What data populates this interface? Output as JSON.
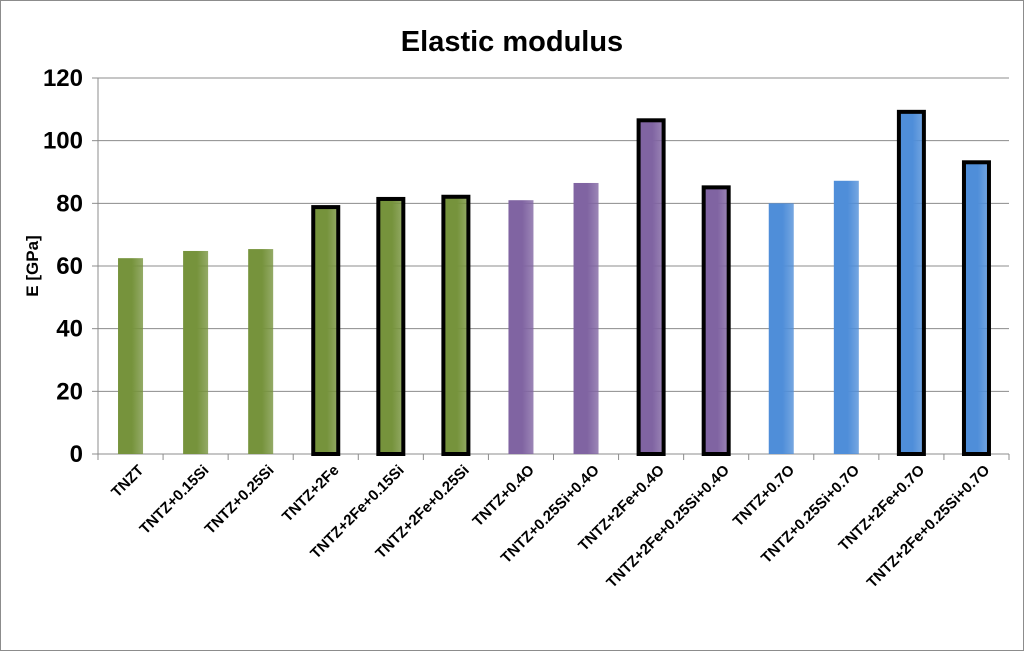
{
  "chart_data": {
    "type": "bar",
    "title": "Elastic modulus",
    "xlabel": "",
    "ylabel": "E [GPa]",
    "ylim": [
      0,
      120
    ],
    "yticks": [
      0,
      20,
      40,
      60,
      80,
      100,
      120
    ],
    "grid": true,
    "legend": "none",
    "categories": [
      "TNZT",
      "TNTZ+0.15Si",
      "TNTZ+0.25Si",
      "TNTZ+2Fe",
      "TNTZ+2Fe+0.15Si",
      "TNTZ+2Fe+0.25Si",
      "TNTZ+0.4O",
      "TNTZ+0.25Si+0.4O",
      "TNTZ+2Fe+0.4O",
      "TNTZ+2Fe+0.25Si+0.4O",
      "TNTZ+0.7O",
      "TNTZ+0.25Si+0.7O",
      "TNTZ+2Fe+0.7O",
      "TNTZ+2Fe+0.25Si+0.7O"
    ],
    "values": [
      62.5,
      64.8,
      65.4,
      78.8,
      81.4,
      82.1,
      81.0,
      86.5,
      106.5,
      85.1,
      80.0,
      87.2,
      109.2,
      93.1
    ],
    "bar_colors": [
      "#76933c",
      "#76933c",
      "#76933c",
      "#76933c",
      "#76933c",
      "#76933c",
      "#8064a2",
      "#8064a2",
      "#8064a2",
      "#8064a2",
      "#4f8ed9",
      "#4f8ed9",
      "#4f8ed9",
      "#4f8ed9"
    ],
    "bar_outlined": [
      false,
      false,
      false,
      true,
      true,
      true,
      false,
      false,
      true,
      true,
      false,
      false,
      true,
      true
    ],
    "outline_color": "#000000",
    "grid_color": "#8c8c8c"
  }
}
